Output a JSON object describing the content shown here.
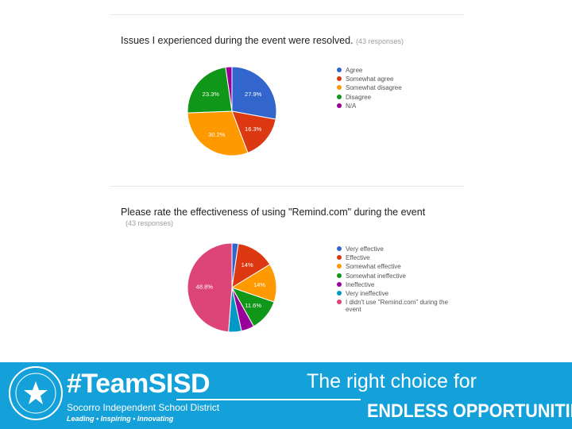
{
  "chart_data": [
    {
      "type": "pie",
      "title": "Issues I experienced during the event were resolved.",
      "response_count": "(43 responses)",
      "labels": [
        "Agree",
        "Somewhat agree",
        "Somewhat disagree",
        "Disagree",
        "N/A"
      ],
      "values": [
        27.9,
        16.3,
        30.2,
        23.3,
        2.3
      ],
      "slice_labels": [
        "27.9%",
        "16.3%",
        "30.2%",
        "23.3%",
        ""
      ],
      "colors": [
        "#3366cc",
        "#dc3912",
        "#ff9900",
        "#109618",
        "#990099"
      ],
      "legend_position": "right"
    },
    {
      "type": "pie",
      "title": "Please rate the effectiveness of using \"Remind.com\" during the event",
      "response_count": "(43 responses)",
      "labels": [
        "Very effective",
        "Effective",
        "Somewhat effective",
        "Somewhat ineffective",
        "Ineffective",
        "Very ineffective",
        "I didn't use \"Remind.com\" during the event"
      ],
      "values": [
        2.3,
        14,
        14,
        11.6,
        4.7,
        4.7,
        48.8
      ],
      "slice_labels": [
        "",
        "14%",
        "14%",
        "11.6%",
        "",
        "",
        "48.8%"
      ],
      "colors": [
        "#3366cc",
        "#dc3912",
        "#ff9900",
        "#109618",
        "#990099",
        "#0099c6",
        "#dd4477"
      ],
      "legend_position": "right"
    }
  ],
  "footer": {
    "hashtag": "#TeamSISD",
    "district": "Socorro Independent School District",
    "motto": "Leading • Inspiring • Innovating",
    "tagline": "The right choice for",
    "slogan": "ENDLESS OPPORTUNITIES."
  }
}
